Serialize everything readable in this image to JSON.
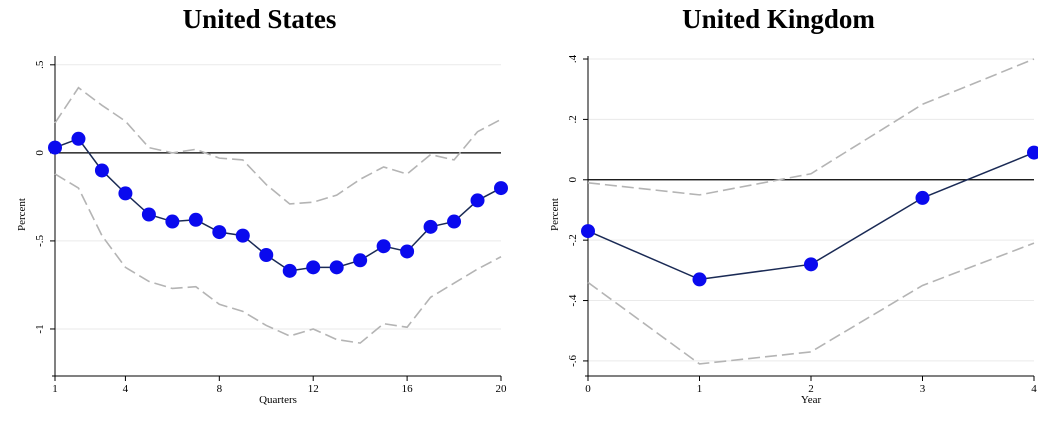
{
  "colors": {
    "series": "#1a2a55",
    "marker": "#0a0aee",
    "band": "#b4b4b4",
    "grid": "#eaeaea",
    "zero": "#000000"
  },
  "chart_data": [
    {
      "type": "line",
      "title": "United States",
      "xlabel": "Quarters",
      "ylabel": "Percent",
      "xlim": [
        1,
        20
      ],
      "ylim": [
        -1.25,
        0.55
      ],
      "xticks": [
        1,
        4,
        8,
        12,
        16,
        20
      ],
      "xtick_labels": [
        "1",
        "4",
        "8",
        "12",
        "16",
        "20"
      ],
      "yticks": [
        -1,
        -0.5,
        0,
        0.5
      ],
      "ytick_labels": [
        "-1",
        "-.5",
        "0",
        ".5"
      ],
      "grid": true,
      "zero_line": true,
      "x": [
        1,
        2,
        3,
        4,
        5,
        6,
        7,
        8,
        9,
        10,
        11,
        12,
        13,
        14,
        15,
        16,
        17,
        18,
        19,
        20
      ],
      "series": [
        {
          "role": "estimate",
          "values": [
            0.03,
            0.08,
            -0.1,
            -0.23,
            -0.35,
            -0.39,
            -0.38,
            -0.45,
            -0.47,
            -0.58,
            -0.67,
            -0.65,
            -0.65,
            -0.61,
            -0.53,
            -0.56,
            -0.42,
            -0.39,
            -0.27,
            -0.2
          ]
        },
        {
          "role": "upper band",
          "values": [
            0.17,
            0.37,
            0.27,
            0.18,
            0.03,
            0.0,
            0.02,
            -0.03,
            -0.04,
            -0.18,
            -0.29,
            -0.28,
            -0.24,
            -0.15,
            -0.08,
            -0.12,
            -0.01,
            -0.04,
            0.12,
            0.19
          ]
        },
        {
          "role": "lower band",
          "values": [
            -0.12,
            -0.2,
            -0.47,
            -0.65,
            -0.73,
            -0.77,
            -0.76,
            -0.86,
            -0.9,
            -0.98,
            -1.04,
            -1.0,
            -1.06,
            -1.08,
            -0.97,
            -0.99,
            -0.82,
            -0.74,
            -0.66,
            -0.59
          ]
        }
      ]
    },
    {
      "type": "line",
      "title": "United Kingdom",
      "xlabel": "Year",
      "ylabel": "Percent",
      "xlim": [
        0,
        4
      ],
      "ylim": [
        -0.64,
        0.41
      ],
      "xticks": [
        0,
        1,
        2,
        3,
        4
      ],
      "xtick_labels": [
        "0",
        "1",
        "2",
        "3",
        "4"
      ],
      "yticks": [
        -0.6,
        -0.4,
        -0.2,
        0,
        0.2,
        0.4
      ],
      "ytick_labels": [
        "-.6",
        "-.4",
        "-.2",
        "0",
        ".2",
        ".4"
      ],
      "grid": true,
      "zero_line": true,
      "x": [
        0,
        1,
        2,
        3,
        4
      ],
      "series": [
        {
          "role": "estimate",
          "values": [
            -0.17,
            -0.33,
            -0.28,
            -0.06,
            0.09
          ]
        },
        {
          "role": "upper band",
          "values": [
            -0.01,
            -0.05,
            0.02,
            0.25,
            0.4
          ]
        },
        {
          "role": "lower band",
          "values": [
            -0.34,
            -0.61,
            -0.57,
            -0.35,
            -0.21
          ]
        }
      ]
    }
  ]
}
